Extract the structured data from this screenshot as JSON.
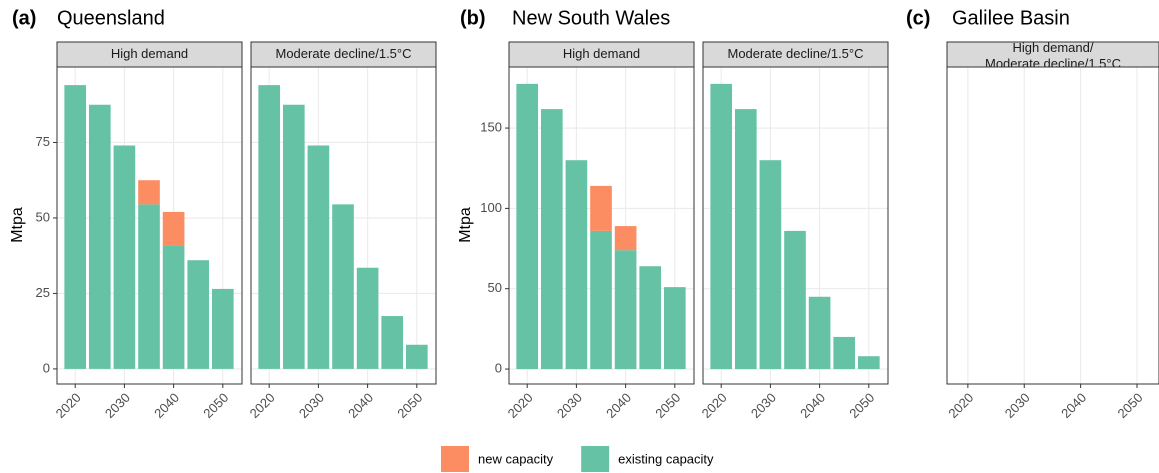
{
  "legend": {
    "series": [
      {
        "name": "new capacity",
        "color": "#fc8d62"
      },
      {
        "name": "existing capacity",
        "color": "#66c2a5"
      }
    ]
  },
  "chart_data": [
    {
      "type": "bar",
      "label": "(a)",
      "title": "Queensland",
      "ylabel": "Mtpa",
      "x": [
        2020,
        2025,
        2030,
        2035,
        2040,
        2045,
        2050
      ],
      "xlim": [
        2016.3,
        2053.9
      ],
      "xticks": [
        2020,
        2030,
        2040,
        2050
      ],
      "ylim": [
        -5,
        100
      ],
      "yticks": [
        0,
        25,
        50,
        75
      ],
      "grid": true,
      "facets": [
        {
          "name": "High demand",
          "values": [
            [
              0,
              0,
              0,
              8,
              11,
              0,
              0
            ],
            [
              94,
              87.5,
              74,
              54.5,
              41,
              36,
              26.5
            ]
          ]
        },
        {
          "name": "Moderate decline/1.5°C",
          "values": [
            [
              0,
              0,
              0,
              0,
              0,
              0,
              0
            ],
            [
              94,
              87.5,
              74,
              54.5,
              33.5,
              17.5,
              8
            ]
          ]
        }
      ]
    },
    {
      "type": "bar",
      "label": "(b)",
      "title": "New South Wales",
      "ylabel": "Mtpa",
      "x": [
        2020,
        2025,
        2030,
        2035,
        2040,
        2045,
        2050
      ],
      "xlim": [
        2016.3,
        2053.9
      ],
      "xticks": [
        2020,
        2030,
        2040,
        2050
      ],
      "ylim": [
        -9.3,
        188
      ],
      "yticks": [
        0,
        50,
        100,
        150
      ],
      "grid": true,
      "facets": [
        {
          "name": "High demand",
          "values": [
            [
              0,
              0,
              0,
              28,
              15,
              0,
              0
            ],
            [
              177.5,
              161.8,
              130,
              86,
              74,
              64,
              51
            ]
          ]
        },
        {
          "name": "Moderate decline/1.5°C",
          "values": [
            [
              0,
              0,
              0,
              0,
              0,
              0,
              0
            ],
            [
              177.5,
              161.8,
              130,
              86,
              45,
              20,
              8
            ]
          ]
        }
      ]
    },
    {
      "type": "bar",
      "label": "(c)",
      "title": "Galilee Basin",
      "xlim": [
        2016.3,
        2053.9
      ],
      "xticks": [
        2020,
        2030,
        2040,
        2050
      ],
      "grid": true,
      "facets": [
        {
          "name": [
            "High demand/",
            "Moderate decline/1.5°C"
          ]
        }
      ]
    }
  ]
}
